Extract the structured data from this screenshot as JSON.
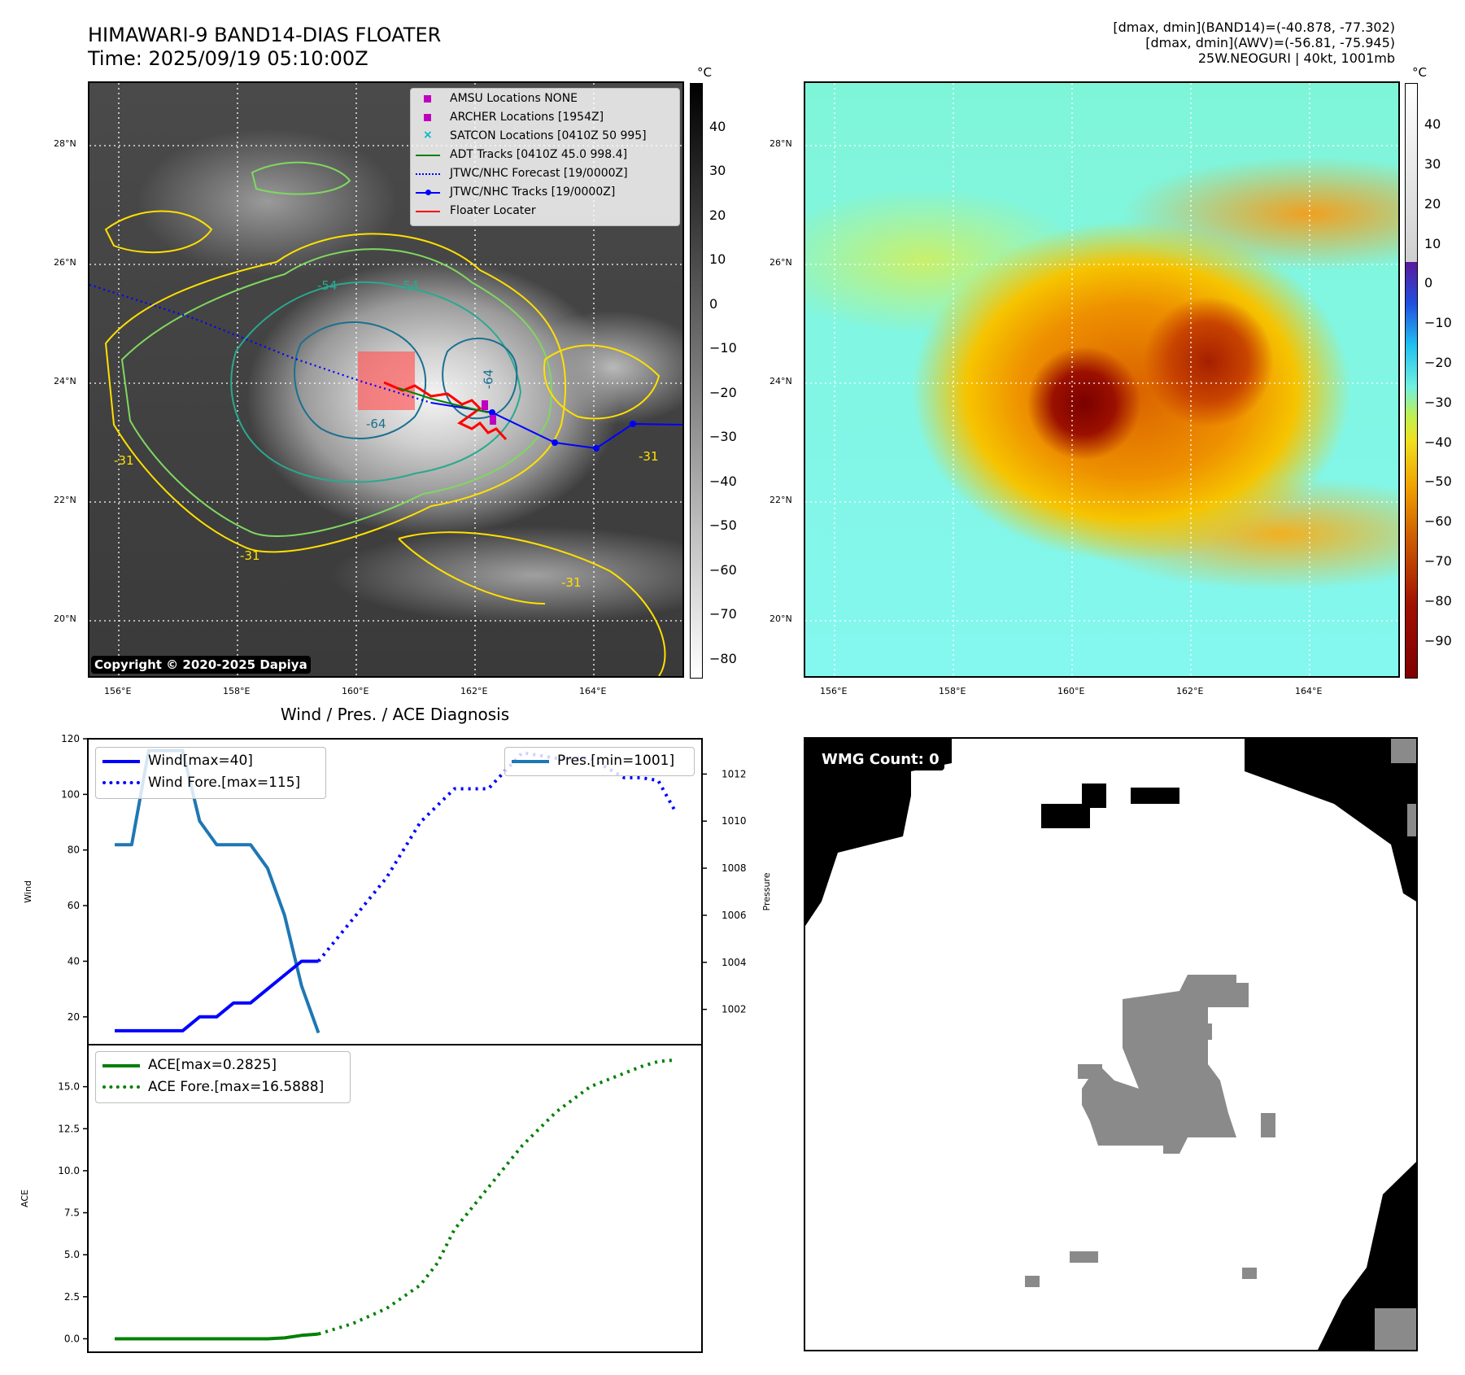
{
  "header": {
    "title_line1": "HIMAWARI-9 BAND14-DIAS FLOATER",
    "title_line2": "Time: 2025/09/19 05:10:00Z",
    "info_line1": "[dmax, dmin](BAND14)=(-40.878, -77.302)",
    "info_line2": "[dmax, dmin](AWV)=(-56.81, -75.945)",
    "info_line3": "25W.NEOGURI | 40kt, 1001mb"
  },
  "map": {
    "lat_labels": [
      "28°N",
      "26°N",
      "24°N",
      "22°N",
      "20°N"
    ],
    "lon_labels": [
      "156°E",
      "158°E",
      "160°E",
      "162°E",
      "164°E"
    ],
    "copyright": "Copyright © 2020-2025 Dapiya",
    "contour_labels": [
      "-54",
      "-64",
      "-64",
      "-31",
      "-31",
      "-31",
      "-31",
      "-54"
    ],
    "legend": [
      {
        "marker": "square",
        "color": "#c000c0",
        "label": "AMSU Locations NONE"
      },
      {
        "marker": "square",
        "color": "#c000c0",
        "label": "ARCHER Locations [1954Z]"
      },
      {
        "marker": "x",
        "color": "#00b8c8",
        "label": "SATCON Locations [0410Z 50 995]"
      },
      {
        "marker": "line",
        "color": "#008000",
        "label": "ADT Tracks [0410Z 45.0 998.4]"
      },
      {
        "marker": "dotted",
        "color": "#0000ff",
        "label": "JTWC/NHC Forecast [19/0000Z]"
      },
      {
        "marker": "line-dot",
        "color": "#0000ff",
        "label": "JTWC/NHC Tracks [19/0000Z]"
      },
      {
        "marker": "line",
        "color": "#ff0000",
        "label": "Floater Locater"
      }
    ]
  },
  "colorbar_gray": {
    "unit": "°C",
    "ticks": [
      "40",
      "30",
      "20",
      "10",
      "0",
      "−10",
      "−20",
      "−30",
      "−40",
      "−50",
      "−60",
      "−70",
      "−80"
    ]
  },
  "colorbar_color": {
    "unit": "°C",
    "ticks": [
      "40",
      "30",
      "20",
      "10",
      "0",
      "−10",
      "−20",
      "−30",
      "−40",
      "−50",
      "−60",
      "−70",
      "−80",
      "−90"
    ]
  },
  "wmg": {
    "count_label": "WMG Count: 0"
  },
  "chart_data": [
    {
      "type": "line",
      "title": "Wind / Pres. / ACE Diagnosis",
      "ylabel": "Wind",
      "y2label": "Pressure",
      "ylim": [
        10,
        120
      ],
      "y2lim": [
        1000.5,
        1013.5
      ],
      "yticks": [
        "20",
        "40",
        "60",
        "80",
        "100",
        "120"
      ],
      "y2ticks": [
        "1002",
        "1004",
        "1006",
        "1008",
        "1010",
        "1012"
      ],
      "series": [
        {
          "name": "Wind[max=40]",
          "color": "#0000ff",
          "style": "solid",
          "axis": "left",
          "x": [
            0,
            1,
            2,
            3,
            4,
            5,
            6,
            7,
            8,
            9,
            10,
            11,
            12
          ],
          "values": [
            15,
            15,
            15,
            15,
            15,
            20,
            20,
            25,
            25,
            30,
            35,
            40,
            40
          ]
        },
        {
          "name": "Wind Fore.[max=115]",
          "color": "#0000ff",
          "style": "dotted",
          "axis": "left",
          "x": [
            12,
            14,
            16,
            18,
            20,
            22,
            24,
            26,
            28,
            30,
            31,
            32,
            33
          ],
          "values": [
            40,
            55,
            70,
            90,
            102,
            102,
            115,
            113,
            113,
            106,
            106,
            105,
            94
          ]
        },
        {
          "name": "Pres.[min=1001]",
          "color": "#1f77b4",
          "style": "solid",
          "axis": "right",
          "x": [
            0,
            1,
            2,
            3,
            4,
            5,
            6,
            7,
            8,
            9,
            10,
            11,
            12
          ],
          "values": [
            1009,
            1009,
            1013,
            1013,
            1013,
            1010,
            1009,
            1009,
            1009,
            1008,
            1006,
            1003,
            1001
          ]
        }
      ]
    },
    {
      "type": "line",
      "ylabel": "ACE",
      "ylim": [
        -0.8,
        17.5
      ],
      "yticks": [
        "0.0",
        "2.5",
        "5.0",
        "7.5",
        "10.0",
        "12.5",
        "15.0"
      ],
      "series": [
        {
          "name": "ACE[max=0.2825]",
          "color": "#008000",
          "style": "solid",
          "x": [
            0,
            1,
            2,
            3,
            4,
            5,
            6,
            7,
            8,
            9,
            10,
            11,
            12
          ],
          "values": [
            0,
            0,
            0,
            0,
            0,
            0,
            0,
            0,
            0,
            0,
            0.05,
            0.2,
            0.2825
          ]
        },
        {
          "name": "ACE Fore.[max=16.5888]",
          "color": "#008000",
          "style": "dotted",
          "x": [
            12,
            14,
            16,
            18,
            19,
            20,
            22,
            24,
            26,
            28,
            30,
            31,
            32,
            33
          ],
          "values": [
            0.2825,
            0.9,
            1.8,
            3.2,
            4.5,
            6.5,
            9.0,
            11.5,
            13.5,
            15.0,
            15.8,
            16.2,
            16.5,
            16.5888
          ]
        }
      ]
    }
  ]
}
